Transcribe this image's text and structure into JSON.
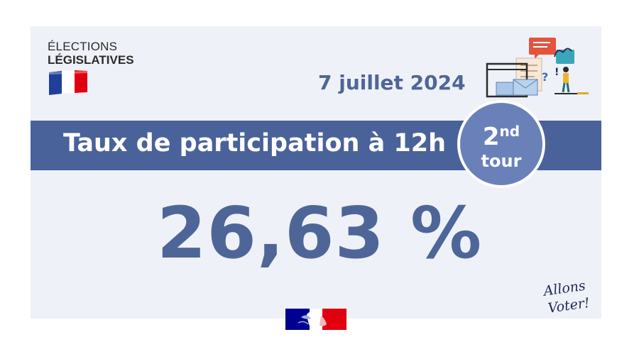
{
  "header": {
    "logo_line1": "ÉLECTIONS",
    "logo_line2": "LÉGISLATIVES",
    "date": "7 juillet 2024"
  },
  "band": {
    "title": "Taux de participation à 12h"
  },
  "badge": {
    "number": "2",
    "suffix": "nd",
    "word": "tour"
  },
  "result": {
    "rate": "26,63 %"
  },
  "footer": {
    "slogan_line1": "Allons",
    "slogan_line2": "Voter!"
  },
  "colors": {
    "primary_blue": "#4a629a",
    "badge_blue": "#6981b8",
    "text_blue": "#4e6697",
    "card_bg": "#eff1f8",
    "flag_red": "#e1000f",
    "flag_blue": "#000091"
  },
  "icons": [
    "french-flag-icon",
    "ballot-box-illustration",
    "marianne-logo"
  ]
}
